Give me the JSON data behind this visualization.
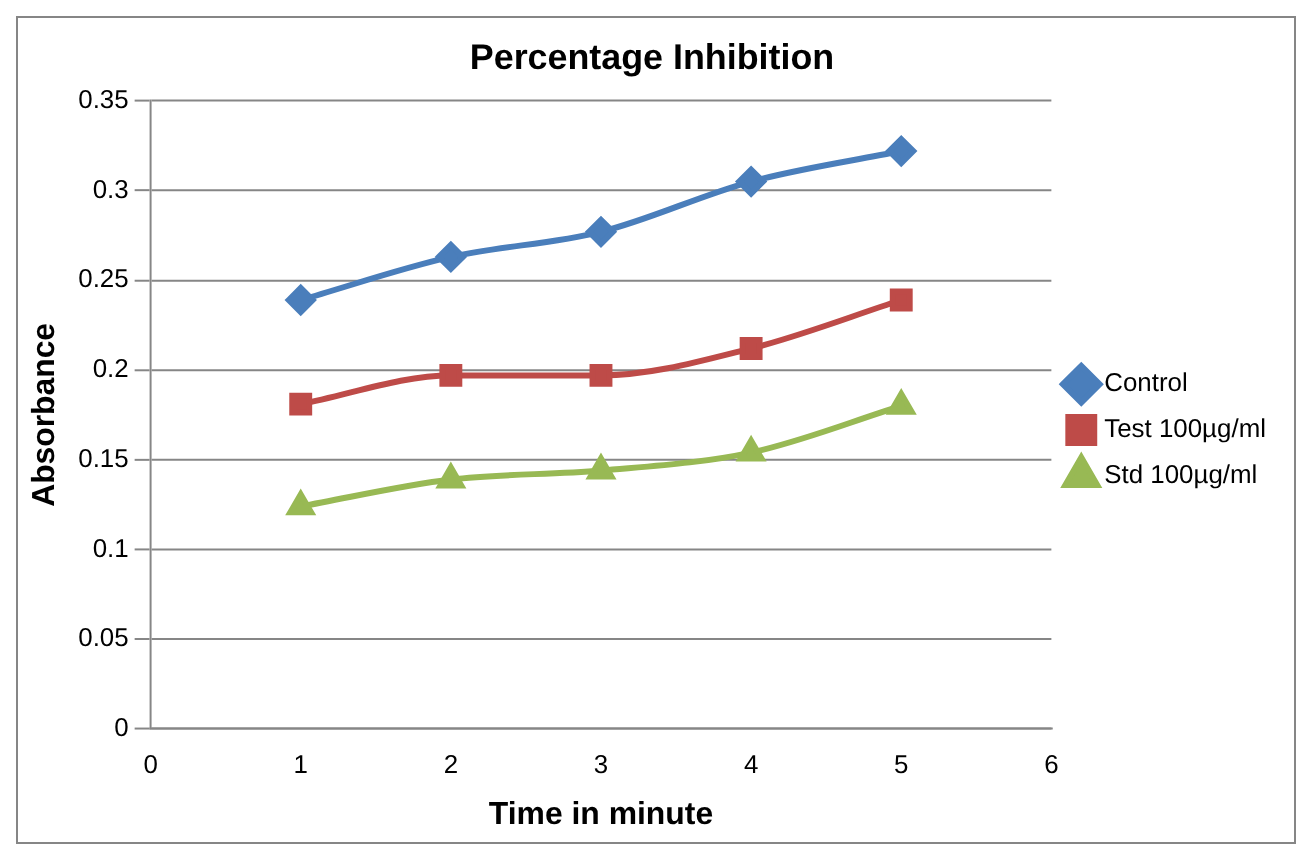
{
  "chart_data": {
    "type": "line",
    "title": "Percentage Inhibition",
    "xlabel": "Time in minute",
    "ylabel": "Absorbance",
    "x": [
      1,
      2,
      3,
      4,
      5
    ],
    "series": [
      {
        "name": "Control",
        "color": "#4a7ebb",
        "marker": "diamond",
        "values": [
          0.239,
          0.263,
          0.277,
          0.305,
          0.322
        ]
      },
      {
        "name": "Test 100µg/ml",
        "color": "#be4b48",
        "marker": "square",
        "values": [
          0.181,
          0.197,
          0.197,
          0.212,
          0.239
        ]
      },
      {
        "name": "Std 100µg/ml",
        "color": "#98b954",
        "marker": "triangle",
        "values": [
          0.124,
          0.139,
          0.144,
          0.154,
          0.18
        ]
      }
    ],
    "xlim": [
      0,
      6
    ],
    "xticks": [
      0,
      1,
      2,
      3,
      4,
      5,
      6
    ],
    "ylim": [
      0,
      0.35
    ],
    "yticks": [
      0,
      0.05,
      0.1,
      0.15,
      0.2,
      0.25,
      0.3,
      0.35
    ],
    "grid": "y",
    "legend": "right",
    "line_style": "solid"
  }
}
